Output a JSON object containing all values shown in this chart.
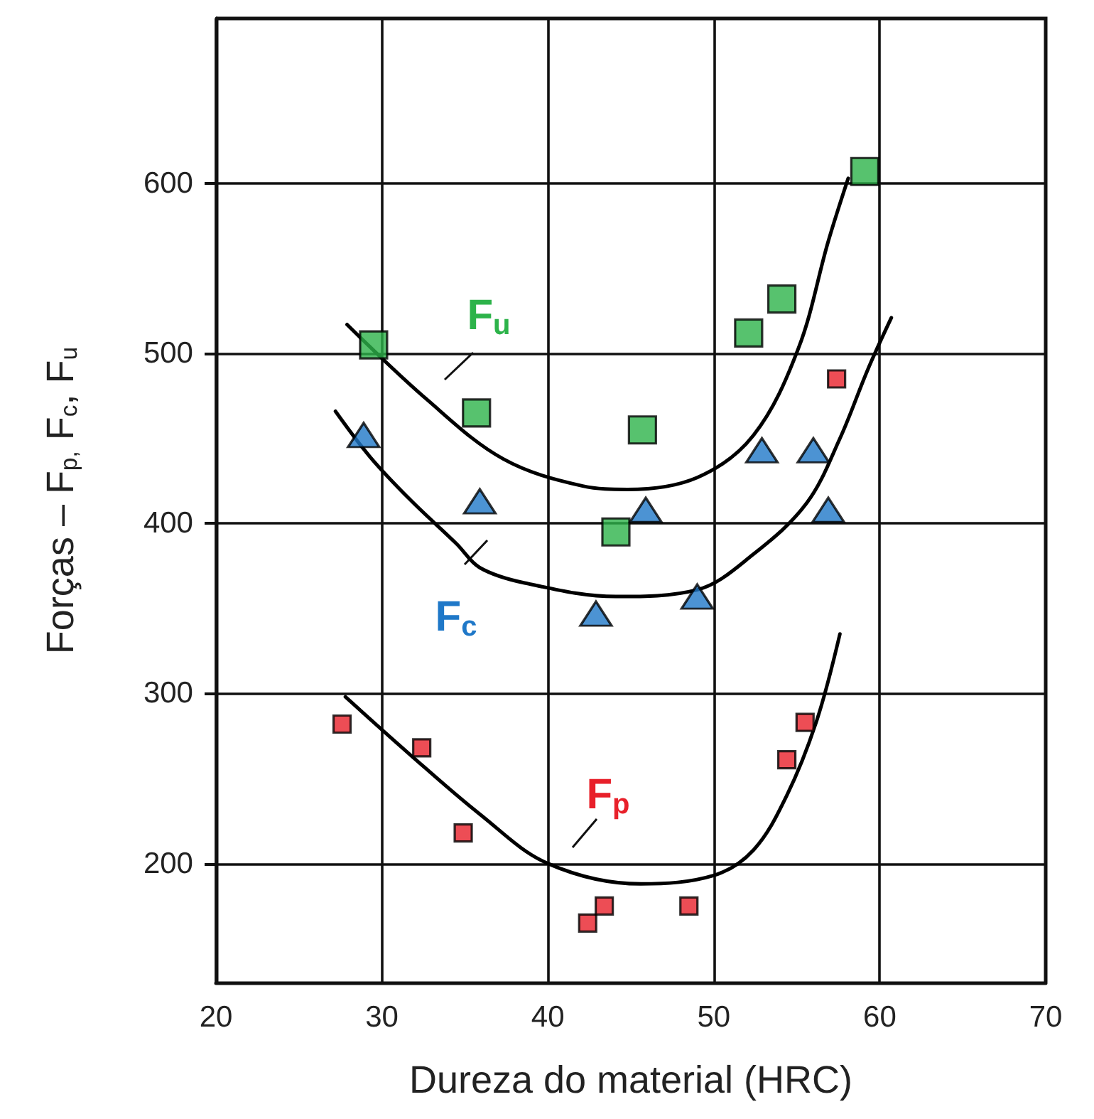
{
  "chart_data": {
    "type": "scatter",
    "xlabel": "Dureza do material (HRC)",
    "ylabel": "Forças – F$_{p,}$ F$_{c}$, F$_{u}$",
    "xlim": [
      20,
      70
    ],
    "xticks": [
      20,
      30,
      40,
      50,
      60,
      70
    ],
    "ylim": [
      130,
      697
    ],
    "yticks": [
      200,
      300,
      400,
      500,
      600
    ],
    "grid": true,
    "series": [
      {
        "marker": "square",
        "color": "#2db34a",
        "x": [
          29.5,
          35.7,
          45.7,
          44.1,
          52.1,
          54.1,
          59.1
        ],
        "values": [
          505,
          465,
          455,
          395,
          512,
          532,
          607
        ]
      },
      {
        "marker": "triangle",
        "color": "#1f78c8",
        "x": [
          28.9,
          35.9,
          45.9,
          52.9,
          56.0,
          56.9,
          42.9,
          49.0
        ],
        "values": [
          452,
          413,
          408,
          443,
          443,
          408,
          347,
          357
        ]
      },
      {
        "marker": "square",
        "color": "#e8202a",
        "x": [
          27.6,
          32.4,
          34.9,
          42.4,
          43.4,
          48.5,
          54.4,
          55.5,
          57.4
        ],
        "values": [
          282,
          268,
          218,
          165,
          175,
          175,
          261,
          283,
          485
        ]
      },
      {
        "type": "line",
        "marker": "none",
        "color": "#000000",
        "x": [
          27.9,
          32.7,
          37.3,
          42.1,
          44.8,
          49.0,
          52.4,
          55.1,
          56.9,
          58.1
        ],
        "values": [
          517,
          473,
          438,
          422,
          420,
          427,
          452,
          503,
          566,
          603
        ]
      },
      {
        "type": "line",
        "marker": "none",
        "color": "#000000",
        "x": [
          27.2,
          29.3,
          31.7,
          34.5,
          35.9,
          38.6,
          44.1,
          49.0,
          52.4,
          55.6,
          57.6,
          59.3,
          60.7
        ],
        "values": [
          466,
          439,
          414,
          388,
          374,
          365,
          357,
          361,
          382,
          412,
          450,
          491,
          521
        ]
      },
      {
        "type": "line",
        "marker": "none",
        "color": "#000000",
        "x": [
          27.8,
          31.7,
          35.9,
          40.0,
          45.6,
          50.0,
          52.4,
          54.4,
          56.2,
          57.6
        ],
        "values": [
          298,
          264,
          229,
          200,
          188,
          193,
          208,
          240,
          284,
          335
        ]
      }
    ],
    "annotations": [
      "F$_{u}$",
      "F$_{c}$",
      "F$_{p}$"
    ]
  }
}
